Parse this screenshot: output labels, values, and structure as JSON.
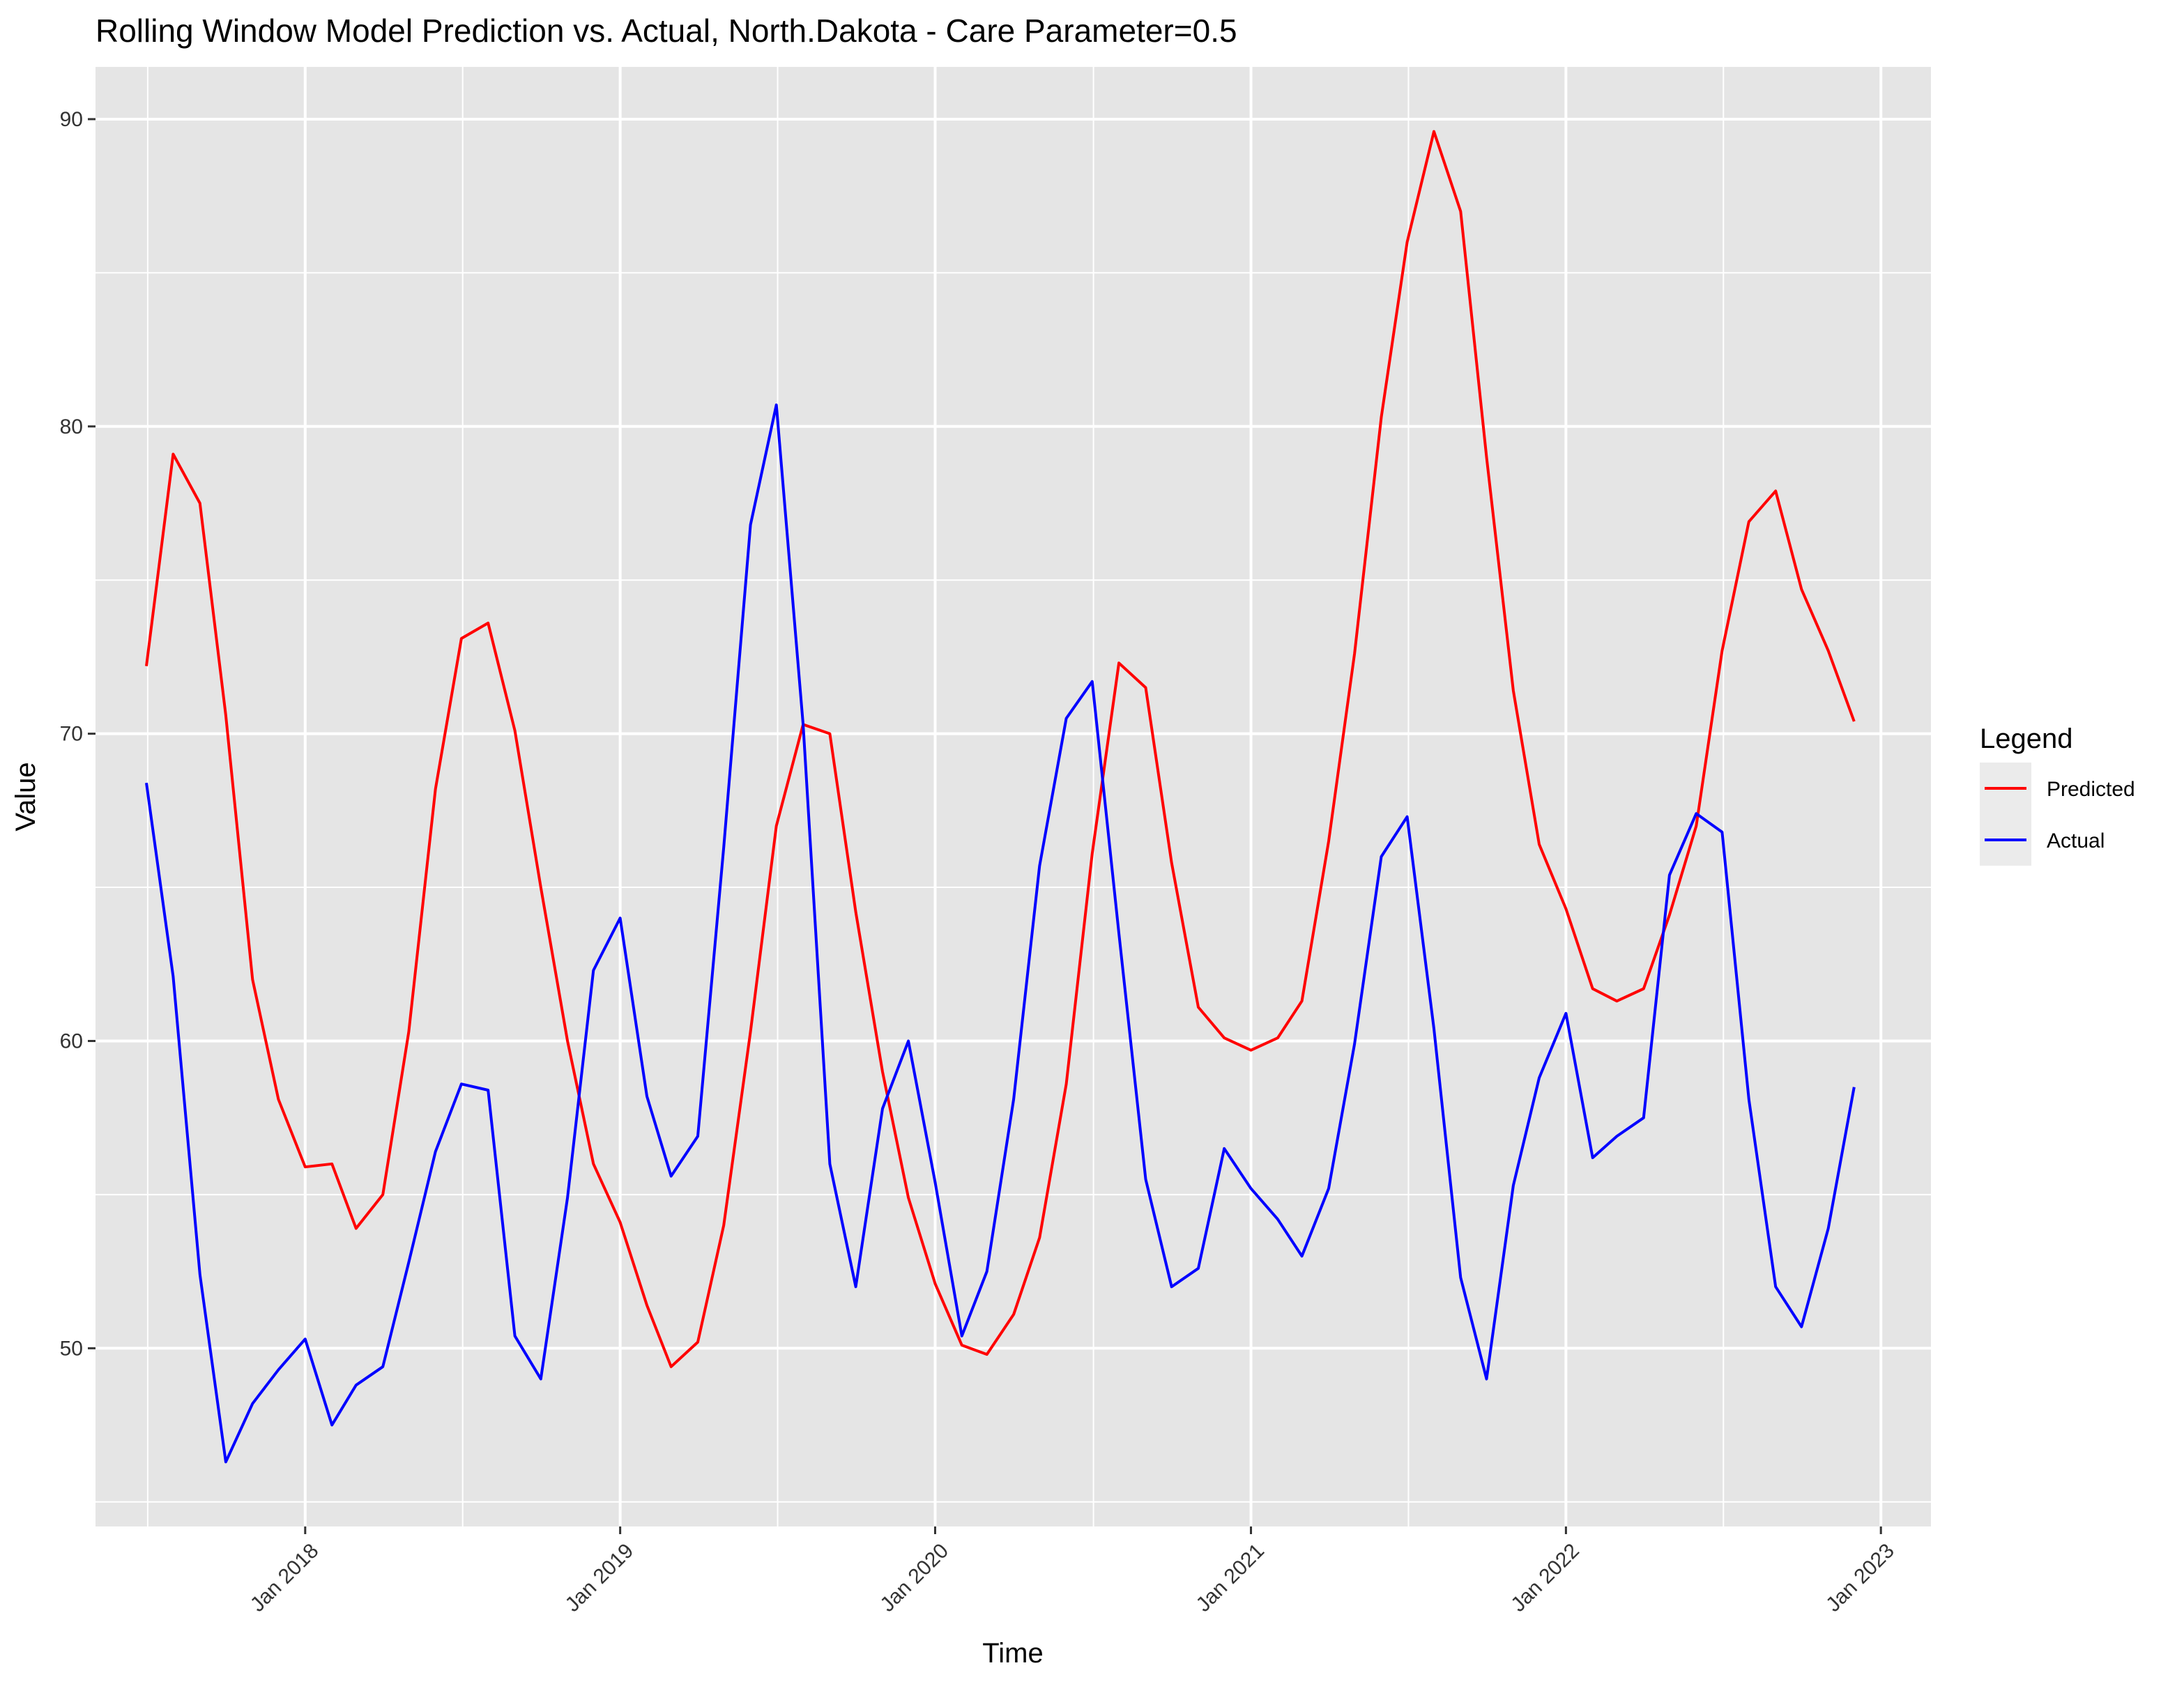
{
  "chart_data": {
    "type": "line",
    "title": "Rolling Window Model Prediction vs. Actual, North.Dakota - Care Parameter=0.5",
    "xlabel": "Time",
    "ylabel": "Value",
    "x_tick_labels": [
      "Jan 2018",
      "Jan 2019",
      "Jan 2020",
      "Jan 2021",
      "Jan 2022",
      "Jan 2023"
    ],
    "x_tick_dates": [
      "2018-01-01",
      "2019-01-01",
      "2020-01-01",
      "2021-01-01",
      "2022-01-01",
      "2023-01-01"
    ],
    "y_tick_labels": [
      "50",
      "60",
      "70",
      "80",
      "90"
    ],
    "y_tick_values": [
      50,
      60,
      70,
      80,
      90
    ],
    "xlim": [
      "2017-05-03",
      "2023-02-28"
    ],
    "ylim": [
      44.2,
      91.7
    ],
    "grid": true,
    "legend": {
      "title": "Legend",
      "position": "right",
      "entries": [
        "Predicted",
        "Actual"
      ]
    },
    "x": [
      "2017-07-01",
      "2017-08-01",
      "2017-09-01",
      "2017-10-01",
      "2017-11-01",
      "2017-12-01",
      "2018-01-01",
      "2018-02-01",
      "2018-03-01",
      "2018-04-01",
      "2018-05-01",
      "2018-06-01",
      "2018-07-01",
      "2018-08-01",
      "2018-09-01",
      "2018-10-01",
      "2018-11-01",
      "2018-12-01",
      "2019-01-01",
      "2019-02-01",
      "2019-03-01",
      "2019-04-01",
      "2019-05-01",
      "2019-06-01",
      "2019-07-01",
      "2019-08-01",
      "2019-09-01",
      "2019-10-01",
      "2019-11-01",
      "2019-12-01",
      "2020-01-01",
      "2020-02-01",
      "2020-03-01",
      "2020-04-01",
      "2020-05-01",
      "2020-06-01",
      "2020-07-01",
      "2020-08-01",
      "2020-09-01",
      "2020-10-01",
      "2020-11-01",
      "2020-12-01",
      "2021-01-01",
      "2021-02-01",
      "2021-03-01",
      "2021-04-01",
      "2021-05-01",
      "2021-06-01",
      "2021-07-01",
      "2021-08-01",
      "2021-09-01",
      "2021-10-01",
      "2021-11-01",
      "2021-12-01",
      "2022-01-01",
      "2022-02-01",
      "2022-03-01",
      "2022-04-01",
      "2022-05-01",
      "2022-06-01",
      "2022-07-01",
      "2022-08-01",
      "2022-09-01",
      "2022-10-01",
      "2022-11-01",
      "2022-12-01"
    ],
    "series": [
      {
        "name": "Predicted",
        "color": "#ff0000",
        "values": [
          72.2,
          79.1,
          77.5,
          70.6,
          62.0,
          58.1,
          55.9,
          56.0,
          53.9,
          55.0,
          60.3,
          68.2,
          73.1,
          73.6,
          70.1,
          65.0,
          60.0,
          56.0,
          54.1,
          51.4,
          49.4,
          50.2,
          54.0,
          60.3,
          67.0,
          70.3,
          70.0,
          64.2,
          59.0,
          54.9,
          52.1,
          50.1,
          49.8,
          51.1,
          53.6,
          58.6,
          66.1,
          72.3,
          71.5,
          65.8,
          61.1,
          60.1,
          59.7,
          60.1,
          61.3,
          66.5,
          72.6,
          80.3,
          86.0,
          89.6,
          87.0,
          79.0,
          71.4,
          66.4,
          64.3,
          61.7,
          61.3,
          61.7,
          64.1,
          67.0,
          72.7,
          76.9,
          77.9,
          74.7,
          72.7,
          70.4
        ]
      },
      {
        "name": "Actual",
        "color": "#0000ff",
        "values": [
          68.4,
          62.1,
          52.4,
          46.3,
          48.2,
          49.3,
          50.3,
          47.5,
          48.8,
          49.4,
          52.8,
          56.4,
          58.6,
          58.4,
          50.4,
          49.0,
          54.9,
          62.3,
          64.0,
          58.2,
          55.6,
          56.9,
          66.3,
          76.8,
          80.7,
          70.3,
          56.0,
          52.0,
          57.8,
          60.0,
          55.4,
          50.4,
          52.5,
          58.1,
          65.7,
          70.5,
          71.7,
          63.5,
          55.5,
          52.0,
          52.6,
          56.5,
          55.2,
          54.2,
          53.0,
          55.2,
          59.9,
          66.0,
          67.3,
          60.4,
          52.3,
          49.0,
          55.3,
          58.8,
          60.9,
          56.2,
          56.9,
          57.5,
          65.4,
          67.4,
          66.8,
          58.1,
          52.0,
          50.7,
          53.9,
          58.5
        ]
      }
    ]
  }
}
